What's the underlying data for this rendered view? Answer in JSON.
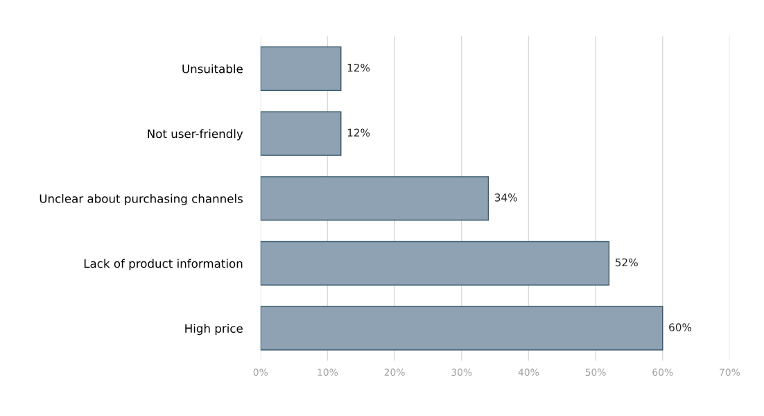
{
  "chart_data": {
    "type": "bar",
    "orientation": "horizontal",
    "categories": [
      "Unsuitable",
      "Not user-friendly",
      "Unclear about purchasing channels",
      "Lack of product information",
      "High price"
    ],
    "values": [
      12,
      12,
      34,
      52,
      60
    ],
    "value_labels": [
      "12%",
      "12%",
      "34%",
      "52%",
      "60%"
    ],
    "color": "#8ea2b3",
    "xlim": [
      0,
      70
    ],
    "xticks": [
      {
        "value": 0,
        "label": "0%"
      },
      {
        "value": 10,
        "label": "10%"
      },
      {
        "value": 20,
        "label": "20%"
      },
      {
        "value": 30,
        "label": "30%"
      },
      {
        "value": 40,
        "label": "40%"
      },
      {
        "value": 50,
        "label": "50%"
      },
      {
        "value": 60,
        "label": "60%"
      },
      {
        "value": 70,
        "label": "70%"
      }
    ],
    "grid": "x"
  }
}
